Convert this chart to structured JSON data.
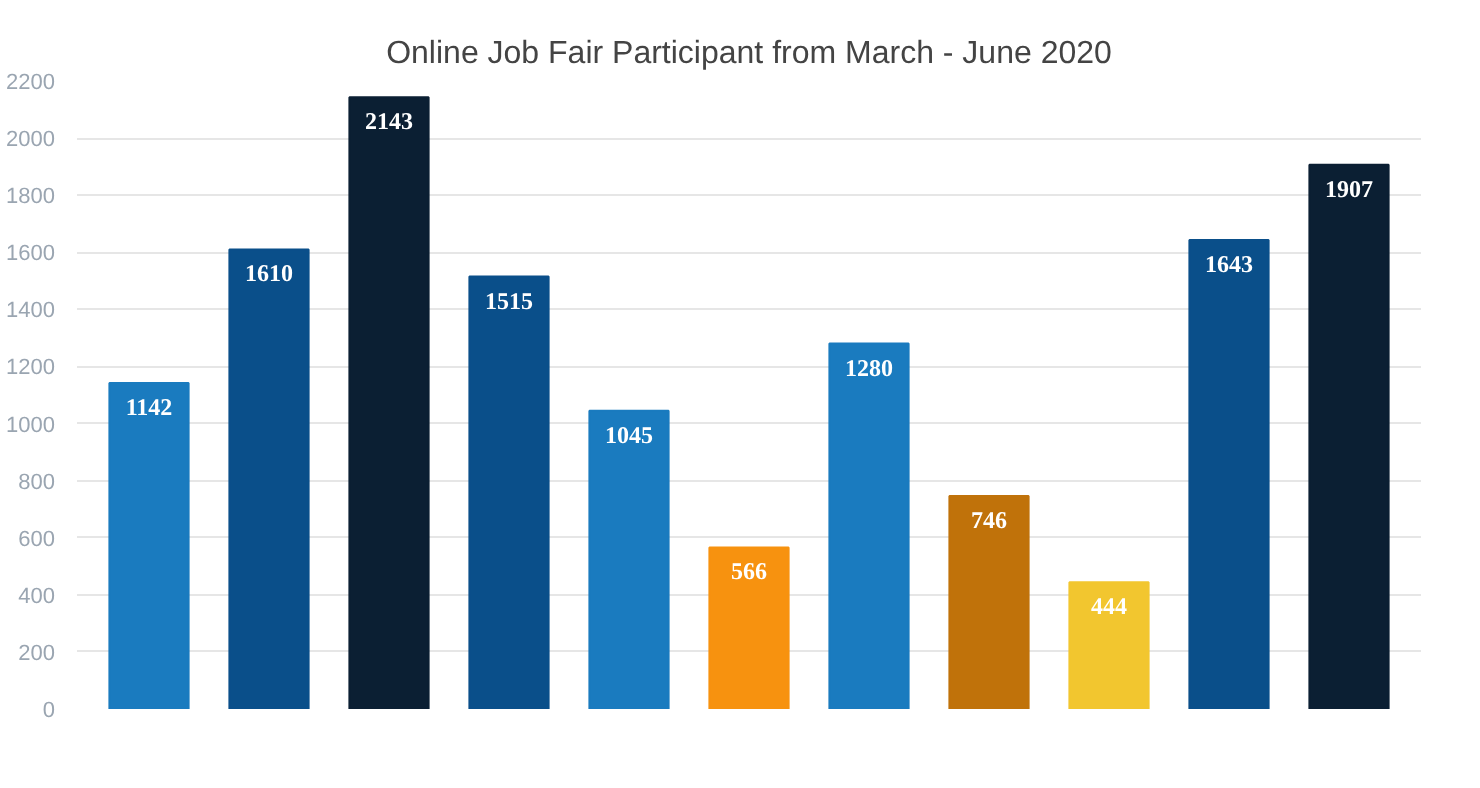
{
  "chart_data": {
    "type": "bar",
    "title": "Online Job Fair Participant from March - June 2020",
    "categories": [
      null,
      null,
      null,
      null,
      null,
      null,
      null,
      null,
      null,
      null,
      null
    ],
    "values": [
      1142,
      1610,
      2143,
      1515,
      1045,
      566,
      1280,
      746,
      444,
      1643,
      1907
    ],
    "colors": [
      "#1a7bbf",
      "#0a4f8a",
      "#0b1f33",
      "#0a4f8a",
      "#1a7bbf",
      "#f7920f",
      "#1a7bbf",
      "#c0720a",
      "#f2c62f",
      "#0a4f8a",
      "#0b1f33"
    ],
    "ylim": [
      0,
      2200
    ],
    "yticks": [
      0,
      200,
      400,
      600,
      800,
      1000,
      1200,
      1400,
      1600,
      1800,
      2000,
      2200
    ],
    "grid": "y",
    "data_labels": true,
    "tick_labels": "y"
  }
}
